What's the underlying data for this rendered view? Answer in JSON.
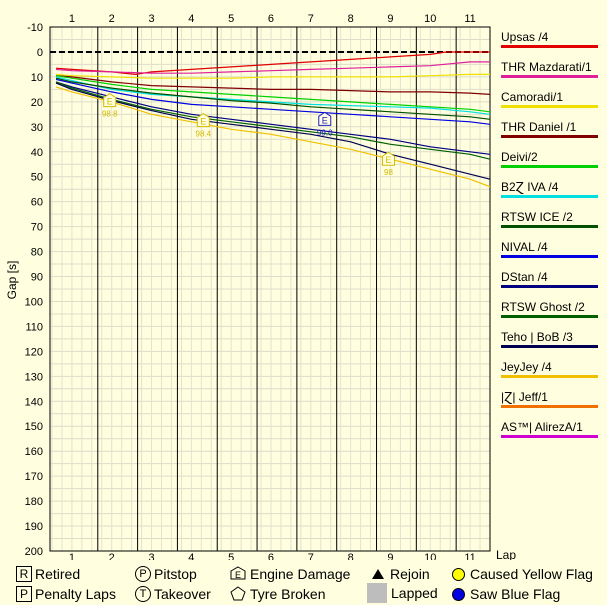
{
  "chart_data": {
    "type": "line",
    "xlabel": "Lap",
    "ylabel": "Gap [s]",
    "x_ticks": [
      1,
      2,
      3,
      4,
      5,
      6,
      7,
      8,
      9,
      10,
      11
    ],
    "y_ticks": [
      -10,
      0,
      10,
      20,
      30,
      40,
      50,
      60,
      70,
      80,
      90,
      100,
      110,
      120,
      130,
      140,
      150,
      160,
      170,
      180,
      190,
      200
    ],
    "ylim": [
      -10,
      200
    ],
    "y_inverted": true,
    "legend_position": "right",
    "series": [
      {
        "name": "Upsas /4",
        "color": "#e00000",
        "x": [
          0.6,
          1,
          2,
          2.6,
          3,
          4,
          5,
          6,
          7,
          8,
          9,
          10,
          10.4,
          11,
          11.5
        ],
        "values": [
          6.5,
          7,
          8,
          9,
          8,
          7,
          6,
          5,
          4,
          3,
          2,
          1,
          0,
          0,
          0
        ]
      },
      {
        "name": "THR Mazdarati/1",
        "color": "#e0209a",
        "x": [
          0.6,
          1,
          2,
          3,
          4,
          5,
          6,
          7,
          8,
          9,
          10,
          11,
          11.5
        ],
        "values": [
          7,
          7.5,
          8,
          8.5,
          8.5,
          8,
          7.5,
          7,
          6.5,
          6,
          5.5,
          4,
          4
        ]
      },
      {
        "name": "Camoradi/1",
        "color": "#f0e000",
        "x": [
          0.6,
          1,
          2,
          3,
          4,
          5,
          6,
          7,
          8,
          9,
          10,
          11,
          11.5
        ],
        "values": [
          9,
          9.5,
          10,
          10.5,
          10.5,
          10.5,
          10,
          10,
          10,
          10,
          9.5,
          9,
          9
        ]
      },
      {
        "name": "THR Daniel /1",
        "color": "#800000",
        "x": [
          0.6,
          1,
          2,
          3,
          4,
          5,
          6,
          7,
          8,
          9,
          10,
          11,
          11.5
        ],
        "values": [
          9.5,
          10,
          12,
          13.5,
          14,
          14.5,
          15,
          15,
          15.5,
          16,
          16,
          16.5,
          17
        ]
      },
      {
        "name": "Deivi/2",
        "color": "#00d000",
        "x": [
          0.6,
          1,
          2,
          3,
          4,
          5,
          6,
          7,
          8,
          9,
          10,
          11,
          11.5
        ],
        "values": [
          9.5,
          10.5,
          13,
          15,
          16,
          17,
          18,
          19,
          20,
          21,
          22,
          23,
          24
        ]
      },
      {
        "name": "B2Ɀ IVA /4",
        "color": "#00e0e0",
        "x": [
          0.6,
          1,
          2,
          3,
          4,
          5,
          6,
          7,
          8,
          9,
          10,
          11,
          11.5
        ],
        "values": [
          10,
          11.5,
          15,
          17,
          18,
          19,
          20,
          21,
          21.5,
          22,
          22.5,
          24,
          25
        ]
      },
      {
        "name": "RTSW ICE /2",
        "color": "#005000",
        "x": [
          0.6,
          1,
          2,
          3,
          4,
          5,
          6,
          7,
          8,
          9,
          10,
          11,
          11.5
        ],
        "values": [
          10.5,
          12,
          14.5,
          16.5,
          18,
          19.5,
          20.5,
          22,
          23,
          24,
          25,
          26,
          27
        ]
      },
      {
        "name": "NIVAL /4",
        "color": "#0000e0",
        "x": [
          0.6,
          1,
          2,
          3,
          4,
          5,
          6,
          7,
          8,
          9,
          10,
          11,
          11.5
        ],
        "values": [
          11,
          12.5,
          16,
          19,
          21,
          22,
          23,
          24,
          25,
          26,
          27,
          28,
          29
        ]
      },
      {
        "name": "DStan /4",
        "color": "#000080",
        "x": [
          0.6,
          1,
          2,
          3,
          4,
          5,
          6,
          7,
          8,
          9,
          10,
          11,
          11.5
        ],
        "values": [
          12,
          14,
          18,
          22,
          25,
          27,
          29,
          31,
          33,
          35,
          38,
          40,
          41
        ]
      },
      {
        "name": "RTSW Ghost /2",
        "color": "#006000",
        "x": [
          0.6,
          1,
          2,
          3,
          4,
          5,
          6,
          7,
          8,
          9,
          10,
          11,
          11.5
        ],
        "values": [
          12,
          14.5,
          19,
          23,
          26,
          28,
          30,
          32,
          34,
          37,
          39,
          41,
          43
        ]
      },
      {
        "name": "Teho | BoB /3",
        "color": "#000050",
        "x": [
          0.6,
          1,
          2,
          3,
          4,
          5,
          6,
          7,
          8,
          9,
          10,
          11,
          11.5
        ],
        "values": [
          12.5,
          15,
          19.5,
          23.5,
          27,
          29,
          31,
          33,
          36,
          41,
          45,
          49,
          51
        ]
      },
      {
        "name": "JeyJey /4",
        "color": "#f0c000",
        "x": [
          0.6,
          1,
          2,
          3,
          4,
          5,
          6,
          7,
          8,
          9,
          10,
          11,
          11.5
        ],
        "values": [
          14,
          16,
          20,
          25,
          28,
          31,
          33,
          36,
          39,
          43,
          47,
          51,
          54
        ]
      },
      {
        "name": "|Ɀ| Jeff/1",
        "color": "#f07000",
        "x": [],
        "values": []
      },
      {
        "name": "AS™| AlirezA/1",
        "color": "#d000d0",
        "x": [],
        "values": []
      }
    ],
    "annotations": [
      {
        "type": "Engine Damage",
        "x": 1.95,
        "y": 19.5,
        "label": "98.8",
        "color": "#d4b800"
      },
      {
        "type": "Engine Damage",
        "x": 4.3,
        "y": 27.5,
        "label": "98.4",
        "color": "#d4b800"
      },
      {
        "type": "Engine Damage",
        "x": 7.35,
        "y": 27,
        "label": "99.0",
        "color": "#2020c0"
      },
      {
        "type": "Engine Damage",
        "x": 8.95,
        "y": 43,
        "label": "98",
        "color": "#d4b800"
      }
    ],
    "pit_lap_lines": [
      1.65,
      2.65,
      3.65,
      4.65,
      5.65,
      6.65,
      7.65,
      8.65,
      9.65,
      10.65
    ]
  },
  "key": {
    "retired": {
      "symbol": "R",
      "label": "Retired"
    },
    "penalty": {
      "symbol": "P",
      "label": "Penalty Laps"
    },
    "pitstop": {
      "symbol": "P",
      "label": "Pitstop"
    },
    "takeover": {
      "symbol": "T",
      "label": "Takeover"
    },
    "engine": {
      "symbol": "E",
      "label": "Engine Damage"
    },
    "tyre": {
      "label": "Tyre Broken"
    },
    "rejoin": {
      "label": "Rejoin"
    },
    "lapped": {
      "label": "Lapped"
    },
    "yellow": {
      "label": "Caused Yellow Flag",
      "color": "#ffff00"
    },
    "blue": {
      "label": "Saw Blue Flag",
      "color": "#0000e0"
    }
  }
}
